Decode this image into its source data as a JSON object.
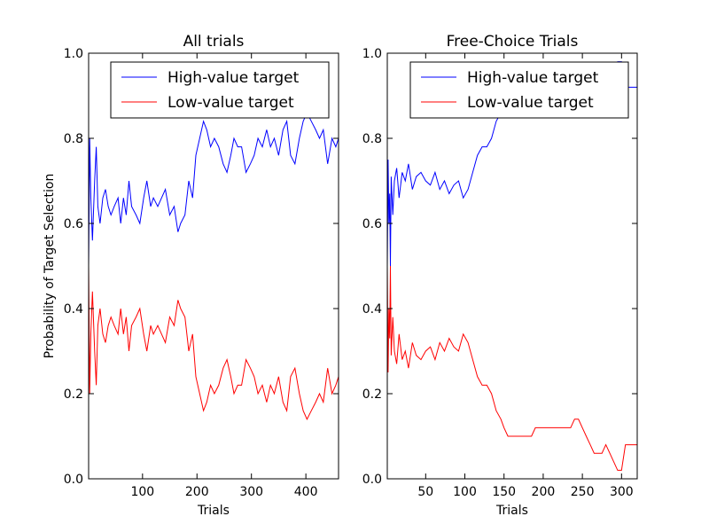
{
  "chart_data": [
    {
      "type": "line",
      "title": "All trials",
      "xlabel": "Trials",
      "ylabel": "Probability of Target Selection",
      "xlim": [
        1,
        460
      ],
      "ylim": [
        0,
        1
      ],
      "xticks": [
        100,
        200,
        300,
        400
      ],
      "yticks": [
        0.0,
        0.2,
        0.4,
        0.6,
        0.8,
        1.0
      ],
      "legend": "top-right",
      "grid": false,
      "series": [
        {
          "name": "High-value target",
          "color": "#0000ff",
          "x": [
            1,
            3,
            5,
            8,
            12,
            15,
            18,
            22,
            27,
            32,
            37,
            42,
            48,
            55,
            60,
            65,
            70,
            75,
            80,
            88,
            95,
            102,
            108,
            115,
            120,
            128,
            135,
            142,
            150,
            158,
            165,
            170,
            178,
            185,
            192,
            198,
            205,
            212,
            218,
            225,
            232,
            240,
            248,
            255,
            262,
            268,
            275,
            282,
            290,
            298,
            305,
            312,
            320,
            328,
            335,
            342,
            350,
            358,
            365,
            372,
            380,
            388,
            395,
            402,
            410,
            418,
            425,
            432,
            440,
            448,
            455,
            460
          ],
          "y": [
            0.5,
            0.8,
            0.66,
            0.56,
            0.7,
            0.78,
            0.64,
            0.6,
            0.66,
            0.68,
            0.64,
            0.62,
            0.64,
            0.66,
            0.6,
            0.66,
            0.62,
            0.7,
            0.64,
            0.62,
            0.6,
            0.66,
            0.7,
            0.64,
            0.66,
            0.64,
            0.66,
            0.68,
            0.62,
            0.64,
            0.58,
            0.6,
            0.62,
            0.7,
            0.66,
            0.76,
            0.8,
            0.84,
            0.82,
            0.78,
            0.8,
            0.78,
            0.74,
            0.72,
            0.76,
            0.8,
            0.78,
            0.78,
            0.72,
            0.74,
            0.76,
            0.8,
            0.78,
            0.82,
            0.78,
            0.8,
            0.76,
            0.82,
            0.84,
            0.76,
            0.74,
            0.8,
            0.84,
            0.86,
            0.84,
            0.82,
            0.8,
            0.82,
            0.74,
            0.8,
            0.78,
            0.8
          ]
        },
        {
          "name": "Low-value target",
          "color": "#ff0000",
          "x": [
            1,
            3,
            5,
            8,
            12,
            15,
            18,
            22,
            27,
            32,
            37,
            42,
            48,
            55,
            60,
            65,
            70,
            75,
            80,
            88,
            95,
            102,
            108,
            115,
            120,
            128,
            135,
            142,
            150,
            158,
            165,
            170,
            178,
            185,
            192,
            198,
            205,
            212,
            218,
            225,
            232,
            240,
            248,
            255,
            262,
            268,
            275,
            282,
            290,
            298,
            305,
            312,
            320,
            328,
            335,
            342,
            350,
            358,
            365,
            372,
            380,
            388,
            395,
            402,
            410,
            418,
            425,
            432,
            440,
            448,
            455,
            460
          ],
          "y": [
            0.5,
            0.2,
            0.34,
            0.44,
            0.3,
            0.22,
            0.36,
            0.4,
            0.34,
            0.32,
            0.36,
            0.38,
            0.36,
            0.34,
            0.4,
            0.34,
            0.38,
            0.3,
            0.36,
            0.38,
            0.4,
            0.34,
            0.3,
            0.36,
            0.34,
            0.36,
            0.34,
            0.32,
            0.38,
            0.36,
            0.42,
            0.4,
            0.38,
            0.3,
            0.34,
            0.24,
            0.2,
            0.16,
            0.18,
            0.22,
            0.2,
            0.22,
            0.26,
            0.28,
            0.24,
            0.2,
            0.22,
            0.22,
            0.28,
            0.26,
            0.24,
            0.2,
            0.22,
            0.18,
            0.22,
            0.2,
            0.24,
            0.18,
            0.16,
            0.24,
            0.26,
            0.2,
            0.16,
            0.14,
            0.16,
            0.18,
            0.2,
            0.18,
            0.26,
            0.2,
            0.22,
            0.24
          ]
        }
      ]
    },
    {
      "type": "line",
      "title": "Free-Choice Trials",
      "xlabel": "Trials",
      "ylabel": "",
      "xlim": [
        1,
        320
      ],
      "ylim": [
        0,
        1
      ],
      "xticks": [
        50,
        100,
        150,
        200,
        250,
        300
      ],
      "yticks": [
        0.0,
        0.2,
        0.4,
        0.6,
        0.8,
        1.0
      ],
      "legend": "top-right",
      "grid": false,
      "series": [
        {
          "name": "High-value target",
          "color": "#0000ff",
          "x": [
            1,
            2,
            3,
            4,
            5,
            6,
            8,
            10,
            13,
            16,
            20,
            24,
            28,
            33,
            38,
            44,
            50,
            56,
            62,
            68,
            74,
            80,
            86,
            92,
            98,
            104,
            110,
            116,
            122,
            128,
            134,
            140,
            146,
            150,
            155,
            160,
            165,
            170,
            175,
            180,
            185,
            190,
            195,
            200,
            205,
            210,
            215,
            220,
            225,
            230,
            235,
            240,
            245,
            250,
            255,
            260,
            265,
            270,
            275,
            280,
            285,
            290,
            295,
            300,
            305,
            310,
            315,
            320
          ],
          "y": [
            0.5,
            0.75,
            0.6,
            0.67,
            0.5,
            0.71,
            0.62,
            0.7,
            0.73,
            0.66,
            0.72,
            0.7,
            0.74,
            0.68,
            0.71,
            0.72,
            0.7,
            0.69,
            0.72,
            0.68,
            0.7,
            0.67,
            0.69,
            0.7,
            0.66,
            0.68,
            0.72,
            0.76,
            0.78,
            0.78,
            0.8,
            0.84,
            0.86,
            0.88,
            0.9,
            0.9,
            0.9,
            0.9,
            0.9,
            0.9,
            0.9,
            0.88,
            0.88,
            0.88,
            0.88,
            0.88,
            0.88,
            0.88,
            0.88,
            0.88,
            0.88,
            0.86,
            0.86,
            0.88,
            0.9,
            0.92,
            0.94,
            0.94,
            0.94,
            0.92,
            0.94,
            0.96,
            0.98,
            0.98,
            0.92,
            0.92,
            0.92,
            0.92
          ]
        },
        {
          "name": "Low-value target",
          "color": "#ff0000",
          "x": [
            1,
            2,
            3,
            4,
            5,
            6,
            8,
            10,
            13,
            16,
            20,
            24,
            28,
            33,
            38,
            44,
            50,
            56,
            62,
            68,
            74,
            80,
            86,
            92,
            98,
            104,
            110,
            116,
            122,
            128,
            134,
            140,
            146,
            150,
            155,
            160,
            165,
            170,
            175,
            180,
            185,
            190,
            195,
            200,
            205,
            210,
            215,
            220,
            225,
            230,
            235,
            240,
            245,
            250,
            255,
            260,
            265,
            270,
            275,
            280,
            285,
            290,
            295,
            300,
            305,
            310,
            315,
            320
          ],
          "y": [
            0.5,
            0.25,
            0.4,
            0.33,
            0.5,
            0.29,
            0.38,
            0.3,
            0.27,
            0.34,
            0.28,
            0.3,
            0.26,
            0.32,
            0.29,
            0.28,
            0.3,
            0.31,
            0.28,
            0.32,
            0.3,
            0.33,
            0.31,
            0.3,
            0.34,
            0.32,
            0.28,
            0.24,
            0.22,
            0.22,
            0.2,
            0.16,
            0.14,
            0.12,
            0.1,
            0.1,
            0.1,
            0.1,
            0.1,
            0.1,
            0.1,
            0.12,
            0.12,
            0.12,
            0.12,
            0.12,
            0.12,
            0.12,
            0.12,
            0.12,
            0.12,
            0.14,
            0.14,
            0.12,
            0.1,
            0.08,
            0.06,
            0.06,
            0.06,
            0.08,
            0.06,
            0.04,
            0.02,
            0.02,
            0.08,
            0.08,
            0.08,
            0.08
          ]
        }
      ]
    }
  ]
}
